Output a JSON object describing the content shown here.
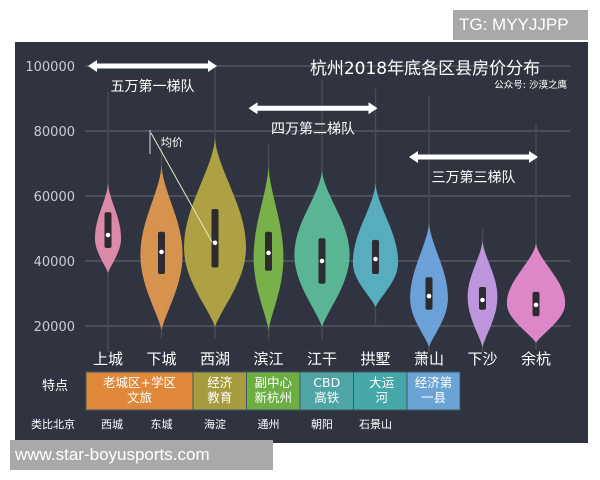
{
  "watermarks": {
    "top": "TG: MYYJJPP",
    "bottom": "www.star-boyusports.com"
  },
  "chart_data": {
    "type": "violin",
    "title": "杭州2018年底各区县房价分布",
    "subtitle": "公众号: 沙漠之鹰",
    "ylim": [
      10000,
      105000
    ],
    "yticks": [
      20000,
      40000,
      60000,
      80000,
      100000
    ],
    "grid": true,
    "categories": [
      "上城",
      "下城",
      "西湖",
      "滨江",
      "江干",
      "拱墅",
      "萧山",
      "下沙",
      "余杭"
    ],
    "colors": [
      "#e58fae",
      "#e0994f",
      "#b5a843",
      "#7cb84a",
      "#5dbd9a",
      "#5ab4c4",
      "#6fa8e0",
      "#c49be6",
      "#e88cd0"
    ],
    "series": [
      {
        "median": 48000,
        "q1": 44000,
        "q3": 55000,
        "min": 12000,
        "max": 92000,
        "top": 64000,
        "bottom": 36300,
        "peak": 47000,
        "rel_width": 0.42
      },
      {
        "median": 42800,
        "q1": 36000,
        "q3": 49000,
        "min": 16000,
        "max": 78000,
        "top": 69500,
        "bottom": 18800,
        "peak": 42000,
        "rel_width": 0.68
      },
      {
        "median": 45600,
        "q1": 38000,
        "q3": 56000,
        "min": 16000,
        "max": 100000,
        "top": 78000,
        "bottom": 19700,
        "peak": 44000,
        "rel_width": 1.0
      },
      {
        "median": 42500,
        "q1": 37000,
        "q3": 49000,
        "min": 16000,
        "max": 76000,
        "top": 69500,
        "bottom": 18800,
        "peak": 41000,
        "rel_width": 0.48
      },
      {
        "median": 40000,
        "q1": 33000,
        "q3": 47000,
        "min": 16000,
        "max": 96000,
        "top": 68000,
        "bottom": 19700,
        "peak": 42000,
        "rel_width": 0.89
      },
      {
        "median": 40600,
        "q1": 36000,
        "q3": 46500,
        "min": 20000,
        "max": 93000,
        "top": 64000,
        "bottom": 25800,
        "peak": 39500,
        "rel_width": 0.73
      },
      {
        "median": 29200,
        "q1": 25000,
        "q3": 35000,
        "min": 12000,
        "max": 91000,
        "top": 52000,
        "bottom": 13500,
        "peak": 28500,
        "rel_width": 0.61
      },
      {
        "median": 28000,
        "q1": 25000,
        "q3": 32000,
        "min": 12000,
        "max": 50000,
        "top": 46500,
        "bottom": 13500,
        "peak": 29000,
        "rel_width": 0.48
      },
      {
        "median": 26500,
        "q1": 23000,
        "q3": 30500,
        "min": 13000,
        "max": 82000,
        "top": 45600,
        "bottom": 14800,
        "peak": 27000,
        "rel_width": 0.94
      }
    ],
    "annotations": {
      "tiers": [
        {
          "label": "五万第一梯队",
          "from": "上城",
          "to": "西湖",
          "level": 100000
        },
        {
          "label": "四万第二梯队",
          "from": "滨江",
          "to": "拱墅",
          "level": 87000
        },
        {
          "label": "三万第三梯队",
          "from": "萧山",
          "to": "余杭",
          "level": 72000
        }
      ],
      "mean_label": "均价"
    }
  },
  "table": {
    "feature_label": "特点",
    "features": [
      {
        "text": "老城区+学区\n文旅",
        "color": "#e0883a",
        "span": 2
      },
      {
        "text": "经济\n教育",
        "color": "#a69b3e",
        "span": 1
      },
      {
        "text": "副中心\n新杭州",
        "color": "#6cae44",
        "span": 1
      },
      {
        "text": "CBD\n高铁",
        "color": "#4fa5a5",
        "span": 1
      },
      {
        "text": "大运\n河",
        "color": "#45a7a8",
        "span": 1
      },
      {
        "text": "经济第\n一县",
        "color": "#6aa3d4",
        "span": 1
      }
    ],
    "beijing_label": "类比北京",
    "beijing": [
      "西城",
      "东城",
      "海淀",
      "通州",
      "朝阳",
      "石景山"
    ]
  }
}
